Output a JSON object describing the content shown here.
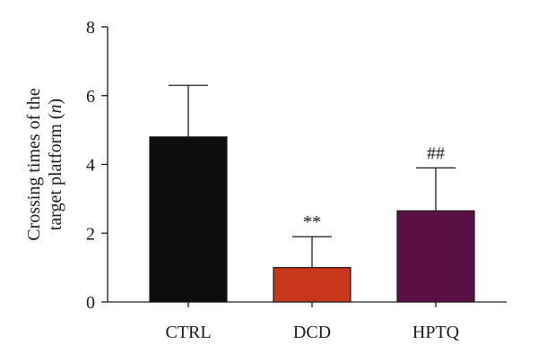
{
  "chart_data": {
    "type": "bar",
    "categories": [
      "CTRL",
      "DCD",
      "HPTQ"
    ],
    "values": [
      4.8,
      1.0,
      2.65
    ],
    "error_upper": [
      6.3,
      1.9,
      3.9
    ],
    "bar_colors": [
      "#0d0d0d",
      "#c8361c",
      "#5a0f45"
    ],
    "annotations": [
      "",
      "**",
      "##"
    ],
    "ylabel_lines": [
      "Crossing times of the",
      "target platform (",
      "n",
      ")"
    ],
    "ylim": [
      0,
      8
    ],
    "yticks": [
      0,
      2,
      4,
      6,
      8
    ],
    "grid": false
  }
}
